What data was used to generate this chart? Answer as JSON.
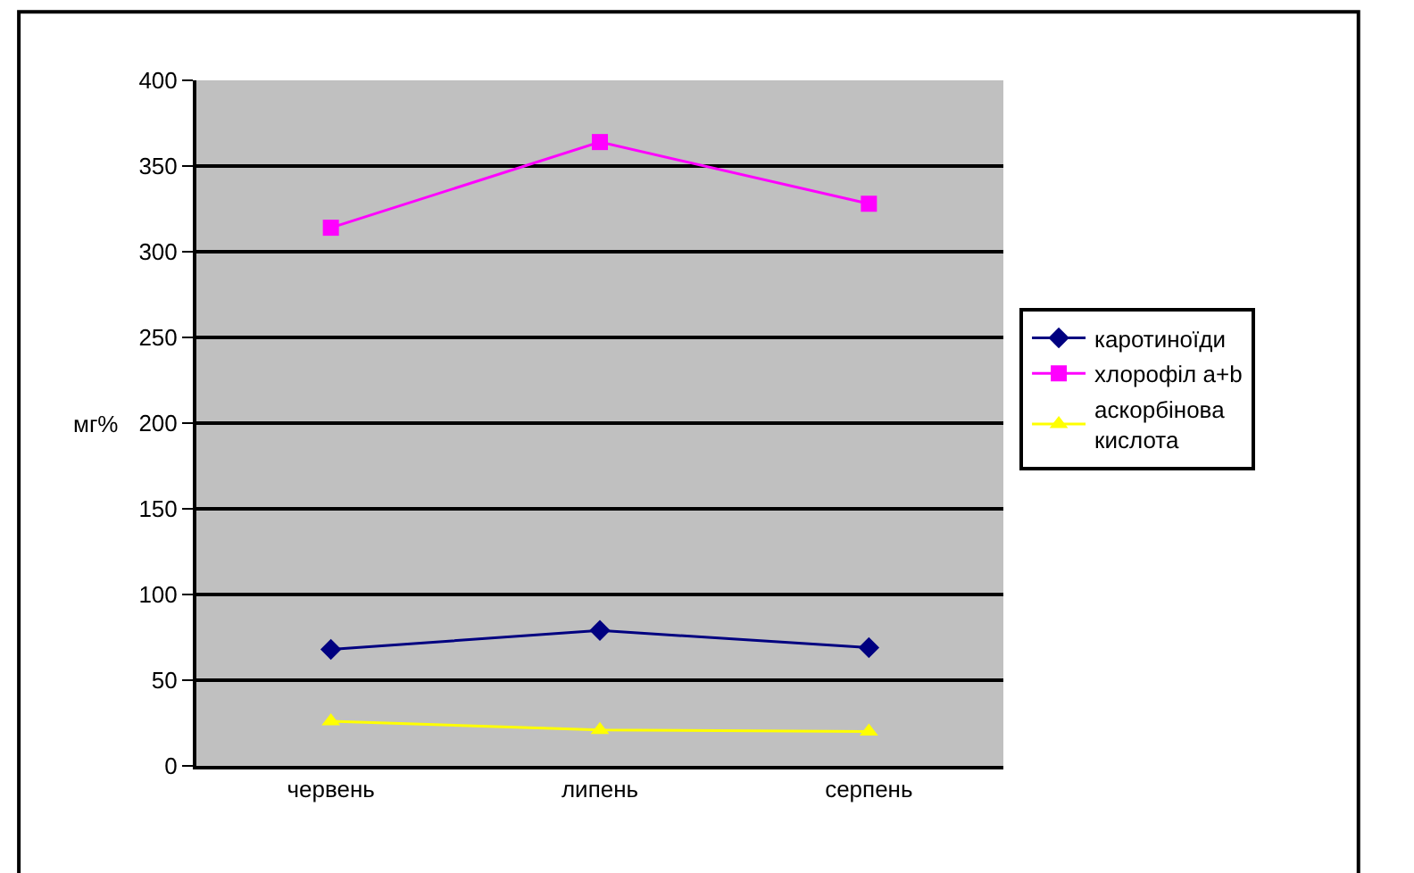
{
  "chart_data": {
    "type": "line",
    "ylabel": "мг%",
    "categories": [
      "червень",
      "липень",
      "серпень"
    ],
    "series": [
      {
        "name": "каротиноїди",
        "color": "#000080",
        "marker": "diamond",
        "values": [
          68,
          79,
          69
        ]
      },
      {
        "name": "хлорофіл a+b",
        "color": "#ff00ff",
        "marker": "square",
        "values": [
          314,
          364,
          328
        ]
      },
      {
        "name": "аскорбінова кислота",
        "color": "#ffff00",
        "marker": "triangle",
        "values": [
          26,
          21,
          20
        ]
      }
    ],
    "ylim": [
      0,
      400
    ],
    "yticks": [
      0,
      50,
      100,
      150,
      200,
      250,
      300,
      350,
      400
    ],
    "grid": "y",
    "legend": "right"
  }
}
